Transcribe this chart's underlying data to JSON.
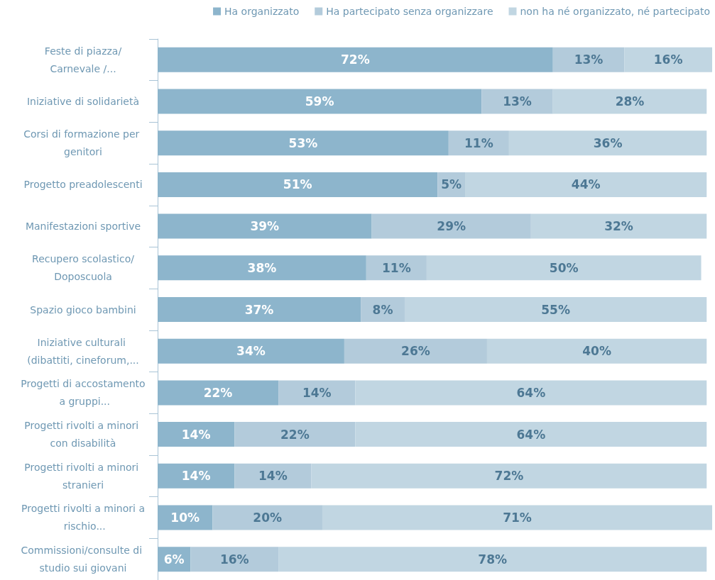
{
  "chart_data": {
    "type": "bar",
    "orientation": "horizontal",
    "stacked": true,
    "legend": "top",
    "categories": [
      "Feste di piazza/Carnevale /...",
      "Iniziative di solidarietà",
      "Corsi di formazione per genitori",
      "Progetto preadolescenti",
      "Manifestazioni sportive",
      "Recupero scolastico/Doposcuola",
      "Spazio gioco bambini",
      "Iniziative culturali (dibattiti, cineforum,...",
      "Progetti di accostamento a gruppi...",
      "Progetti rivolti a minori con disabilità",
      "Progetti rivolti a minori stranieri",
      "Progetti rivolti a minori a rischio...",
      "Commissioni/consulte di studio sui giovani"
    ],
    "series": [
      {
        "name": "Ha organizzato",
        "color": "#8db5cc",
        "values": [
          72,
          59,
          53,
          51,
          39,
          38,
          37,
          34,
          22,
          14,
          14,
          10,
          6
        ],
        "value_labels": [
          "72%",
          "59%",
          "53%",
          "51%",
          "39%",
          "38%",
          "37%",
          "34%",
          "22%",
          "14%",
          "14%",
          "10%",
          "6%"
        ]
      },
      {
        "name": "Ha partecipato senza organizzare",
        "color": "#b3cbdb",
        "values": [
          13,
          13,
          11,
          5,
          29,
          11,
          8,
          26,
          14,
          22,
          14,
          20,
          16
        ],
        "value_labels": [
          "13%",
          "13%",
          "11%",
          "5%",
          "29%",
          "11%",
          "8%",
          "26%",
          "14%",
          "22%",
          "14%",
          "20%",
          "16%"
        ]
      },
      {
        "name": "non ha né organizzato, né partecipato",
        "color": "#c1d6e2",
        "values": [
          16,
          28,
          36,
          44,
          32,
          50,
          55,
          40,
          64,
          64,
          72,
          71,
          78
        ],
        "value_labels": [
          "16%",
          "28%",
          "36%",
          "44%",
          "32%",
          "50%",
          "55%",
          "40%",
          "64%",
          "64%",
          "72%",
          "71%",
          "78%"
        ]
      }
    ]
  }
}
